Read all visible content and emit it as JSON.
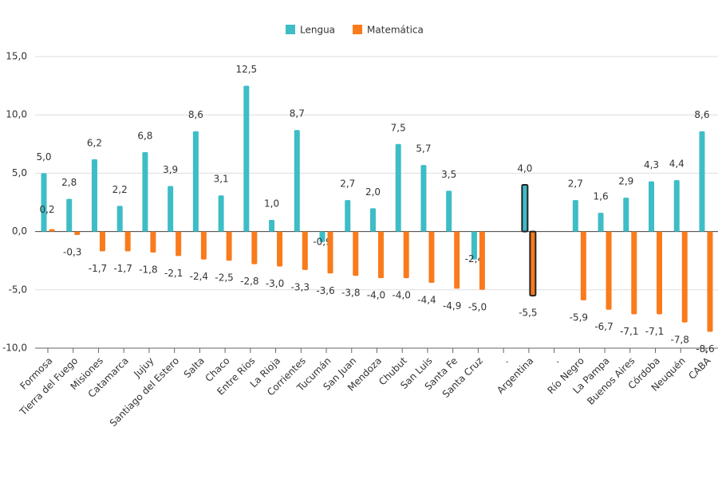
{
  "chart_data": {
    "type": "bar",
    "categories": [
      "Formosa",
      "Tierra del Fuego",
      "Misiones",
      "Catamarca",
      "Jujuy",
      "Santiago del Estero",
      "Salta",
      "Chaco",
      "Entre Ríos",
      "La Rioja",
      "Corrientes",
      "Tucumán",
      "San Juan",
      "Mendoza",
      "Chubut",
      "San Luis",
      "Santa Fe",
      "Santa Cruz",
      ".",
      "Argentina",
      ".",
      "Río Negro",
      "La Pampa",
      "Buenos Aires",
      "Córdoba",
      "Neuquén",
      "CABA"
    ],
    "series": [
      {
        "name": "Lengua",
        "color": "#3dbdc6",
        "values": [
          5.0,
          2.8,
          6.2,
          2.2,
          6.8,
          3.9,
          8.6,
          3.1,
          12.5,
          1.0,
          8.7,
          -0.9,
          2.7,
          2.0,
          7.5,
          5.7,
          3.5,
          -2.4,
          null,
          4.0,
          null,
          2.7,
          1.6,
          2.9,
          4.3,
          4.4,
          8.6
        ],
        "value_labels": [
          "5,0",
          "2,8",
          "6,2",
          "2,2",
          "6,8",
          "3,9",
          "8,6",
          "3,1",
          "12,5",
          "1,0",
          "8,7",
          "-0,9",
          "2,7",
          "2,0",
          "7,5",
          "5,7",
          "3,5",
          "-2,4",
          null,
          "4,0",
          null,
          "2,7",
          "1,6",
          "2,9",
          "4,3",
          "4,4",
          "8,6"
        ]
      },
      {
        "name": "Matemática",
        "color": "#f97b1c",
        "values": [
          0.2,
          -0.3,
          -1.7,
          -1.7,
          -1.8,
          -2.1,
          -2.4,
          -2.5,
          -2.8,
          -3.0,
          -3.3,
          -3.6,
          -3.8,
          -4.0,
          -4.0,
          -4.4,
          -4.9,
          -5.0,
          null,
          -5.5,
          null,
          -5.9,
          -6.7,
          -7.1,
          -7.1,
          -7.8,
          -8.6
        ],
        "value_labels": [
          "0,2",
          "-0,3",
          "-1,7",
          "-1,7",
          "-1,8",
          "-2,1",
          "-2,4",
          "-2,5",
          "-2,8",
          "-3,0",
          "-3,3",
          "-3,6",
          "-3,8",
          "-4,0",
          "-4,0",
          "-4,4",
          "-4,9",
          "-5,0",
          null,
          "-5,5",
          null,
          "-5,9",
          "-6,7",
          "-7,1",
          "-7,1",
          "-7,8",
          "-8,6"
        ]
      }
    ],
    "highlight_category": "Argentina",
    "ylim": [
      -10,
      15
    ],
    "yticks": [
      {
        "value": -10,
        "label": "-10,0"
      },
      {
        "value": -5,
        "label": "-5,0"
      },
      {
        "value": 0,
        "label": "0,0"
      },
      {
        "value": 5,
        "label": "5,0"
      },
      {
        "value": 10,
        "label": "10,0"
      },
      {
        "value": 15,
        "label": "15,0"
      }
    ],
    "grid": true,
    "legend": "top"
  }
}
